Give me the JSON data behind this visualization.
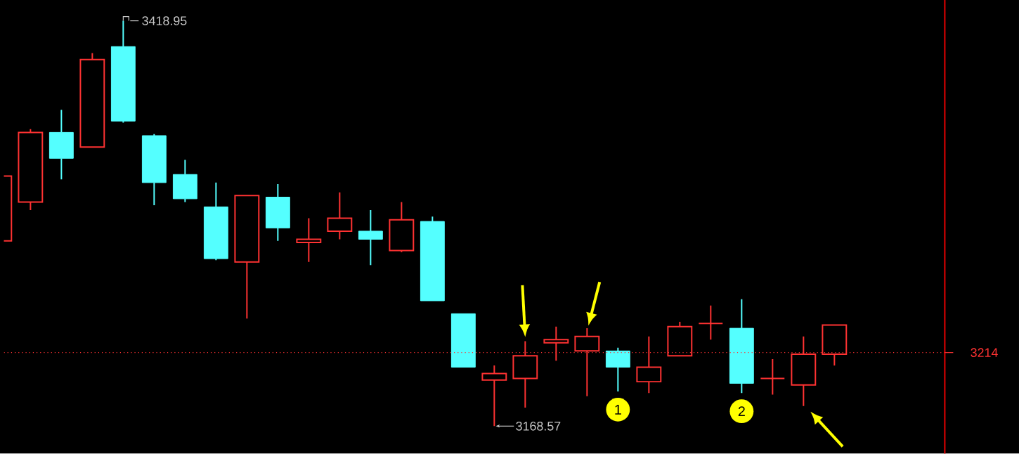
{
  "chart_data": {
    "type": "candlestick",
    "categories": [
      null,
      null,
      null,
      null,
      null,
      null,
      null,
      null,
      null,
      null,
      null,
      null,
      null,
      null,
      null,
      null,
      null,
      null,
      null,
      null,
      null,
      null,
      null,
      null,
      null,
      null,
      null,
      null
    ],
    "ohlc": [
      [
        3283,
        3323,
        3283,
        3323
      ],
      [
        3307,
        3352,
        3302,
        3350
      ],
      [
        3350,
        3364,
        3321,
        3334
      ],
      [
        3341,
        3399,
        3341,
        3395
      ],
      [
        3403,
        3418.95,
        3356,
        3357
      ],
      [
        3348,
        3349,
        3305,
        3319
      ],
      [
        3324,
        3333,
        3307,
        3309
      ],
      [
        3304,
        3319,
        3271,
        3272
      ],
      [
        3270,
        3311,
        3235,
        3311
      ],
      [
        3310,
        3318,
        3283,
        3291
      ],
      [
        3282,
        3297,
        3270,
        3284
      ],
      [
        3289,
        3313,
        3284,
        3297
      ],
      [
        3289,
        3302,
        3268,
        3284
      ],
      [
        3277,
        3307,
        3276,
        3296
      ],
      [
        3295,
        3298,
        3246,
        3246
      ],
      [
        3238,
        3238,
        3205,
        3205
      ],
      [
        3197,
        3206,
        3168.57,
        3201
      ],
      [
        3198,
        3221,
        3180,
        3212
      ],
      [
        3220,
        3230,
        3209,
        3222
      ],
      [
        3215,
        3229,
        3187,
        3224
      ],
      [
        3215,
        3217,
        3190,
        3205
      ],
      [
        3196,
        3224,
        3189,
        3205
      ],
      [
        3212,
        3233,
        3212,
        3230
      ],
      [
        3232,
        3243,
        3222,
        3232
      ],
      [
        3229,
        3247,
        3189,
        3195
      ],
      [
        3198,
        3210,
        3188,
        3198
      ],
      [
        3194,
        3224,
        3181,
        3213
      ],
      [
        3213,
        3231,
        3206,
        3231
      ]
    ],
    "colors": [
      "#ff3232",
      "#ff3232",
      "#54ffff",
      "#ff3232",
      "#54ffff",
      "#54ffff",
      "#54ffff",
      "#54ffff",
      "#ff3232",
      "#54ffff",
      "#ff3232",
      "#ff3232",
      "#54ffff",
      "#ff3232",
      "#54ffff",
      "#54ffff",
      "#ff3232",
      "#ff3232",
      "#ff3232",
      "#ff3232",
      "#54ffff",
      "#ff3232",
      "#ff3232",
      "#ff3232",
      "#54ffff",
      "#ff3232",
      "#ff3232",
      "#ff3232"
    ],
    "ref_lines": [
      {
        "axis": "y",
        "value": 3214,
        "label": "3214",
        "color": "#ff3232",
        "line_style": "dotted"
      }
    ],
    "annotations": [
      "3418.95",
      "3168.57",
      "1",
      "2"
    ]
  }
}
